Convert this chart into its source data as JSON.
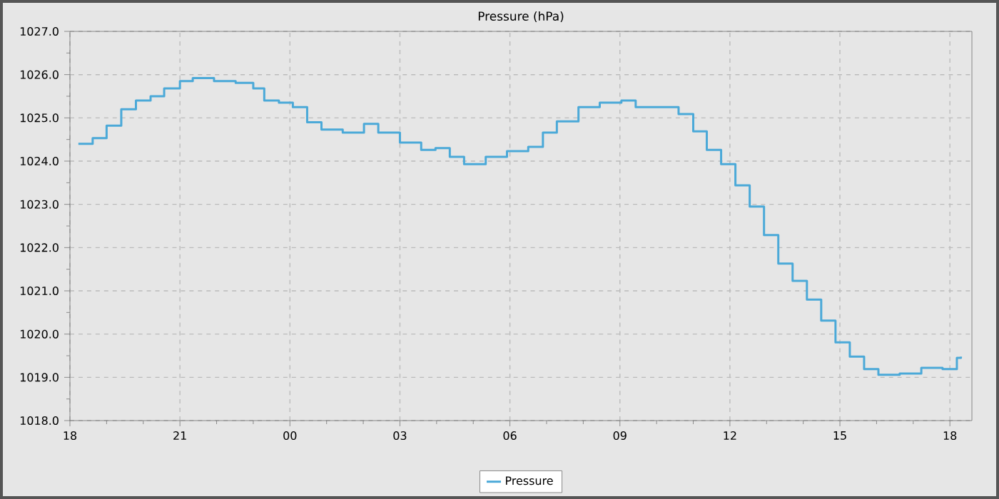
{
  "chart_data": {
    "type": "step",
    "title": "Pressure (hPa)",
    "x": [
      18.23,
      18.62,
      19.0,
      19.4,
      19.8,
      20.2,
      20.57,
      21.0,
      21.35,
      21.93,
      22.52,
      23.0,
      23.3,
      23.7,
      24.08,
      24.47,
      24.86,
      25.44,
      26.02,
      26.41,
      27.0,
      27.58,
      27.97,
      28.36,
      28.75,
      29.34,
      29.92,
      30.5,
      30.9,
      31.28,
      31.87,
      32.45,
      33.04,
      33.43,
      34.2,
      34.6,
      35.0,
      35.37,
      35.76,
      36.15,
      36.54,
      36.93,
      37.32,
      37.71,
      38.1,
      38.49,
      38.88,
      39.27,
      39.66,
      40.05,
      40.63,
      41.22,
      41.8,
      42.19,
      42.3
    ],
    "series": [
      {
        "name": "Pressure",
        "color": "#4ba9d8",
        "values": [
          1024.4,
          1024.53,
          1024.82,
          1025.2,
          1025.4,
          1025.5,
          1025.68,
          1025.85,
          1025.92,
          1025.85,
          1025.81,
          1025.68,
          1025.4,
          1025.35,
          1025.25,
          1024.9,
          1024.73,
          1024.66,
          1024.86,
          1024.66,
          1024.43,
          1024.26,
          1024.3,
          1024.1,
          1023.93,
          1024.1,
          1024.23,
          1024.33,
          1024.66,
          1024.92,
          1025.25,
          1025.35,
          1025.4,
          1025.25,
          1025.25,
          1025.09,
          1024.69,
          1024.26,
          1023.93,
          1023.44,
          1022.95,
          1022.29,
          1021.63,
          1021.23,
          1020.8,
          1020.31,
          1019.81,
          1019.48,
          1019.19,
          1019.06,
          1019.09,
          1019.22,
          1019.19,
          1019.45,
          1019.48
        ]
      }
    ],
    "xlim": [
      18,
      42.6
    ],
    "xticks": [
      {
        "value": 18,
        "label": "18"
      },
      {
        "value": 21,
        "label": "21"
      },
      {
        "value": 24,
        "label": "00"
      },
      {
        "value": 27,
        "label": "03"
      },
      {
        "value": 30,
        "label": "06"
      },
      {
        "value": 33,
        "label": "09"
      },
      {
        "value": 36,
        "label": "12"
      },
      {
        "value": 39,
        "label": "15"
      },
      {
        "value": 42,
        "label": "18"
      }
    ],
    "ylim": [
      1018,
      1027
    ],
    "yticks": [
      {
        "value": 1018,
        "label": "1018.0"
      },
      {
        "value": 1019,
        "label": "1019.0"
      },
      {
        "value": 1020,
        "label": "1020.0"
      },
      {
        "value": 1021,
        "label": "1021.0"
      },
      {
        "value": 1022,
        "label": "1022.0"
      },
      {
        "value": 1023,
        "label": "1023.0"
      },
      {
        "value": 1024,
        "label": "1024.0"
      },
      {
        "value": 1025,
        "label": "1025.0"
      },
      {
        "value": 1026,
        "label": "1026.0"
      },
      {
        "value": 1027,
        "label": "1027.0"
      }
    ],
    "grid": true,
    "legend": "bottom",
    "marker": "none",
    "line_style": "solid"
  }
}
